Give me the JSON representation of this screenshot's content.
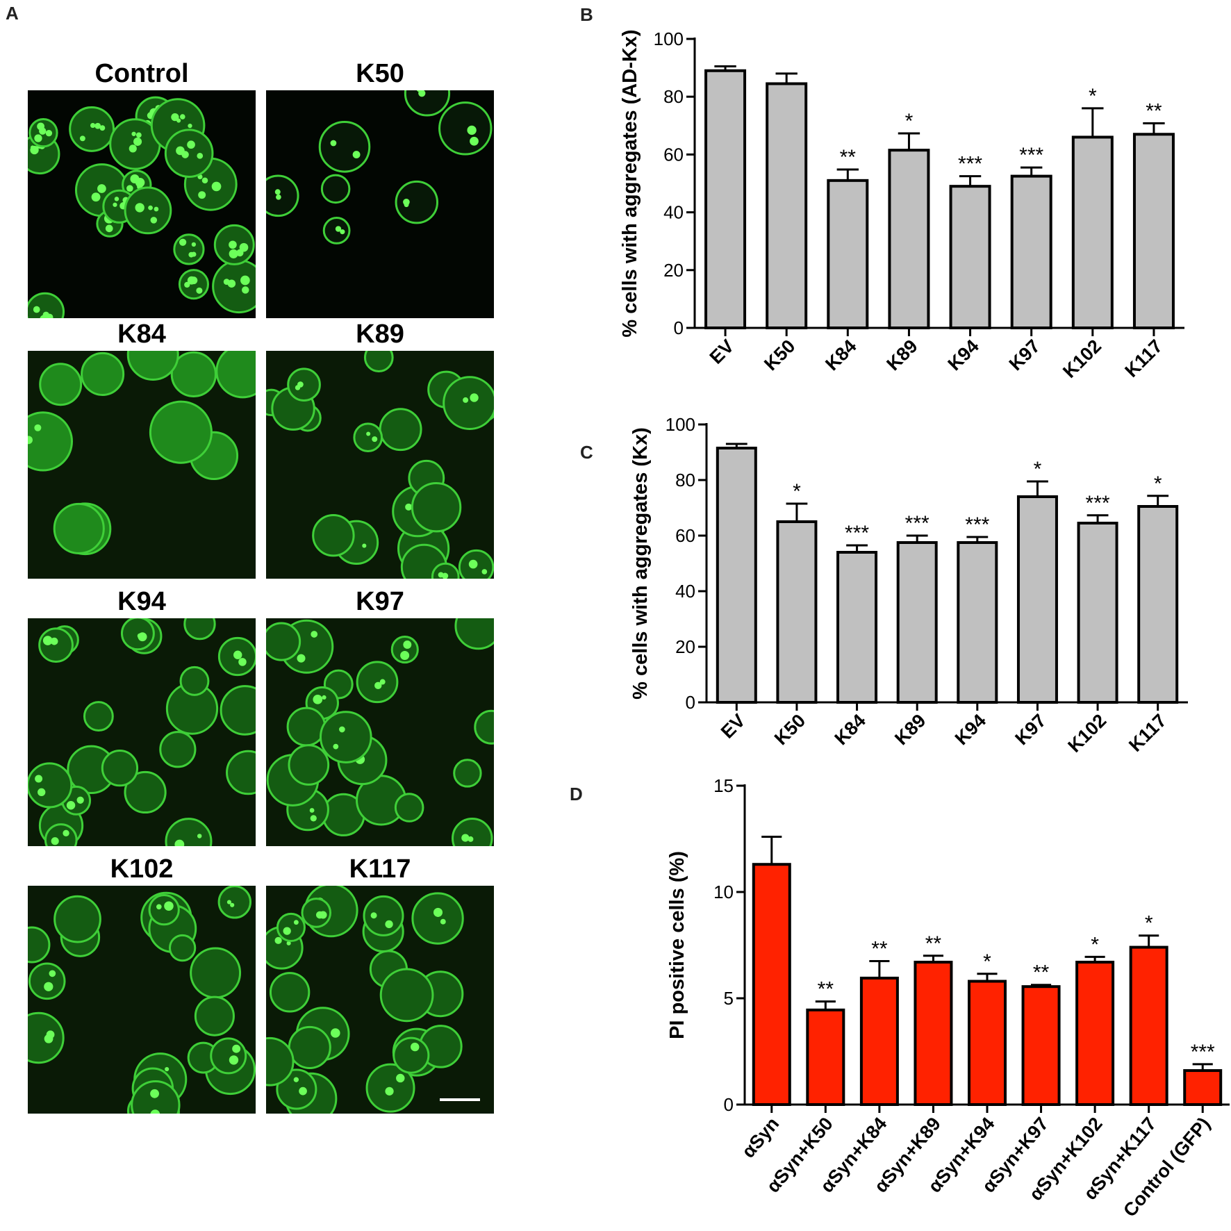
{
  "panel_a": {
    "letter": "A",
    "images": [
      {
        "title": "Control",
        "tone": "bright-spots"
      },
      {
        "title": "K50",
        "tone": "sparse-dark"
      },
      {
        "title": "K84",
        "tone": "bright-membrane"
      },
      {
        "title": "K89",
        "tone": "medium"
      },
      {
        "title": "K94",
        "tone": "medium"
      },
      {
        "title": "K97",
        "tone": "medium"
      },
      {
        "title": "K102",
        "tone": "medium"
      },
      {
        "title": "K117",
        "tone": "medium"
      }
    ],
    "colors": {
      "background": "#0a1a06",
      "cell": "#2fa02c",
      "spot": "#6cff5a"
    }
  },
  "chart_data": [
    {
      "panel": "B",
      "type": "bar",
      "ylabel": "% cells with aggregates (AD-Kx)",
      "categories": [
        "EV",
        "K50",
        "K84",
        "K89",
        "K94",
        "K97",
        "K102",
        "K117"
      ],
      "values": [
        89,
        84.5,
        51,
        61.5,
        49,
        52.5,
        66,
        67
      ],
      "errors": [
        1.5,
        3.5,
        3.8,
        5.8,
        3.5,
        3,
        10,
        3.8
      ],
      "significance": [
        "",
        "",
        "**",
        "*",
        "***",
        "***",
        "*",
        "**"
      ],
      "ylim": [
        0,
        100
      ],
      "yticks": [
        0,
        20,
        40,
        60,
        80,
        100
      ],
      "bar_color": "#c0c0c0"
    },
    {
      "panel": "C",
      "type": "bar",
      "ylabel": "% cells with aggregates (Kx)",
      "categories": [
        "EV",
        "K50",
        "K84",
        "K89",
        "K94",
        "K97",
        "K102",
        "K117"
      ],
      "values": [
        91.5,
        65,
        54,
        57.5,
        57.5,
        74,
        64.5,
        70.5
      ],
      "errors": [
        1.5,
        6.5,
        2.5,
        2.5,
        2,
        5.5,
        2.8,
        3.8
      ],
      "significance": [
        "",
        "*",
        "***",
        "***",
        "***",
        "*",
        "***",
        "*"
      ],
      "ylim": [
        0,
        100
      ],
      "yticks": [
        0,
        20,
        40,
        60,
        80,
        100
      ],
      "bar_color": "#c0c0c0"
    },
    {
      "panel": "D",
      "type": "bar",
      "ylabel": "PI positive cells (%)",
      "categories": [
        "αSyn",
        "αSyn+K50",
        "αSyn+K84",
        "αSyn+K89",
        "αSyn+K94",
        "αSyn+K97",
        "αSyn+K102",
        "αSyn+K117",
        "Control (GFP)"
      ],
      "values": [
        11.3,
        4.45,
        5.95,
        6.7,
        5.8,
        5.55,
        6.7,
        7.4,
        1.6
      ],
      "errors": [
        1.3,
        0.4,
        0.8,
        0.3,
        0.35,
        0.08,
        0.25,
        0.55,
        0.3
      ],
      "significance": [
        "",
        "**",
        "**",
        "**",
        "*",
        "**",
        "*",
        "*",
        "***"
      ],
      "ylim": [
        0,
        15
      ],
      "yticks": [
        0,
        5,
        10,
        15
      ],
      "bar_color": "#ff2200"
    }
  ]
}
